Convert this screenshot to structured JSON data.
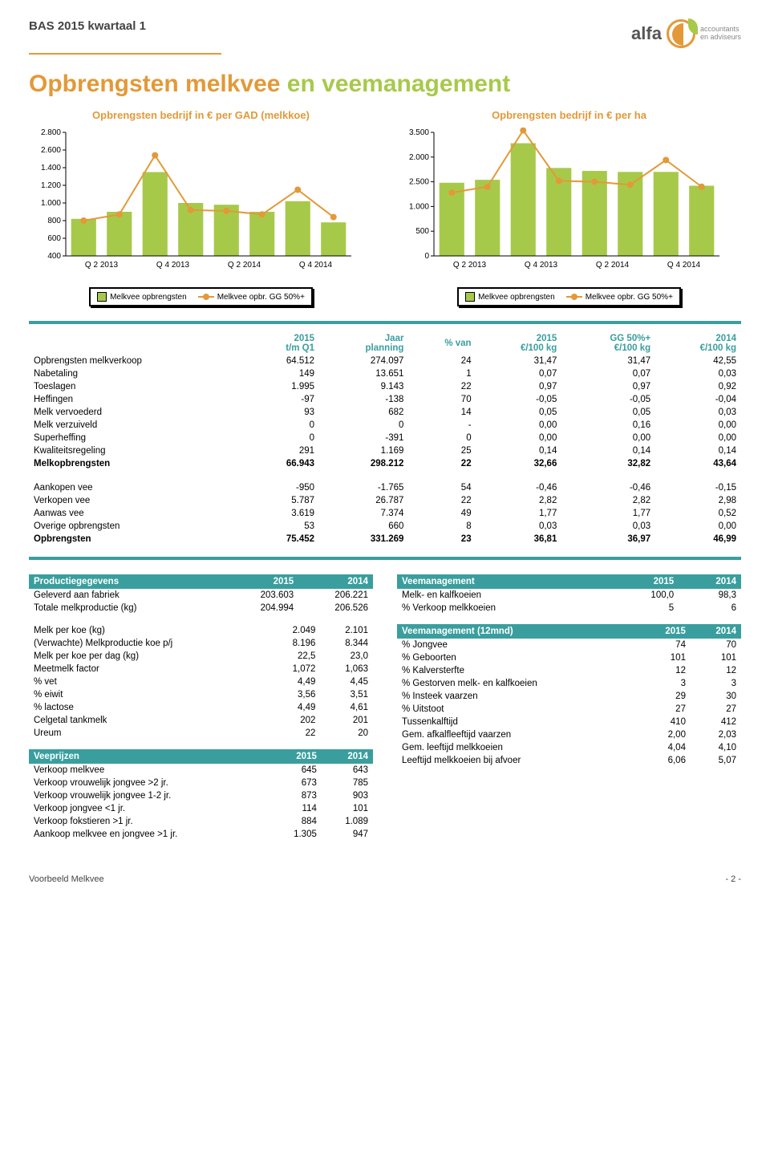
{
  "header": {
    "title": "BAS 2015 kwartaal 1",
    "brand": "alfa",
    "tagline1": "accountants",
    "tagline2": "en adviseurs"
  },
  "page_title": {
    "part1": "Opbrengsten melkvee",
    "part2": " en veemanagement"
  },
  "chart1": {
    "title": "Opbrengsten bedrijf in € per GAD (melkkoe)",
    "type": "bar+line",
    "categories": [
      "Q 2 2013",
      "Q 4 2013",
      "Q 2 2014",
      "Q 4 2014"
    ],
    "bar_values": [
      820,
      900,
      1350,
      1000,
      980,
      900,
      1020,
      780
    ],
    "line_values": [
      800,
      870,
      1540,
      920,
      910,
      870,
      1150,
      840
    ],
    "ylim": [
      400,
      1800
    ],
    "ytick_step": 200,
    "bar_color": "#a7c94a",
    "line_color": "#e39938",
    "axis_color": "#000",
    "bg": "#ffffff",
    "legend_bar": "Melkvee opbrengsten",
    "legend_line": "Melkvee opbr. GG 50%+"
  },
  "chart2": {
    "title": "Opbrengsten bedrijf in € per ha",
    "type": "bar+line",
    "categories": [
      "Q 2 2013",
      "Q 4 2013",
      "Q 2 2014",
      "Q 4 2014"
    ],
    "bar_values": [
      1480,
      1540,
      2280,
      1780,
      1720,
      1700,
      1700,
      1420
    ],
    "line_values": [
      1280,
      1400,
      2540,
      1520,
      1500,
      1440,
      1940,
      1400
    ],
    "ylim": [
      0,
      2500
    ],
    "ytick_step": 500,
    "bar_color": "#a7c94a",
    "line_color": "#e39938",
    "axis_color": "#000",
    "bg": "#ffffff",
    "legend_bar": "Melkvee opbrengsten",
    "legend_line": "Melkvee opbr. GG 50%+"
  },
  "main_table": {
    "headers": [
      "",
      "2015\nt/m Q1",
      "Jaar\nplanning",
      "% van",
      "2015\n€/100 kg",
      "GG 50%+\n€/100 kg",
      "2014\n€/100 kg"
    ],
    "rows": [
      [
        "Opbrengsten melkverkoop",
        "64.512",
        "274.097",
        "24",
        "31,47",
        "31,47",
        "42,55"
      ],
      [
        "Nabetaling",
        "149",
        "13.651",
        "1",
        "0,07",
        "0,07",
        "0,03"
      ],
      [
        "Toeslagen",
        "1.995",
        "9.143",
        "22",
        "0,97",
        "0,97",
        "0,92"
      ],
      [
        "Heffingen",
        "-97",
        "-138",
        "70",
        "-0,05",
        "-0,05",
        "-0,04"
      ],
      [
        "Melk vervoederd",
        "93",
        "682",
        "14",
        "0,05",
        "0,05",
        "0,03"
      ],
      [
        "Melk verzuiveld",
        "0",
        "0",
        "-",
        "0,00",
        "0,16",
        "0,00"
      ],
      [
        "Superheffing",
        "0",
        "-391",
        "0",
        "0,00",
        "0,00",
        "0,00"
      ],
      [
        "Kwaliteitsregeling",
        "291",
        "1.169",
        "25",
        "0,14",
        "0,14",
        "0,14"
      ]
    ],
    "bold1": [
      "Melkopbrengsten",
      "66.943",
      "298.212",
      "22",
      "32,66",
      "32,82",
      "43,64"
    ],
    "rows2": [
      [
        "Aankopen vee",
        "-950",
        "-1.765",
        "54",
        "-0,46",
        "-0,46",
        "-0,15"
      ],
      [
        "Verkopen vee",
        "5.787",
        "26.787",
        "22",
        "2,82",
        "2,82",
        "2,98"
      ],
      [
        "Aanwas vee",
        "3.619",
        "7.374",
        "49",
        "1,77",
        "1,77",
        "0,52"
      ],
      [
        "Overige opbrengsten",
        "53",
        "660",
        "8",
        "0,03",
        "0,03",
        "0,00"
      ]
    ],
    "bold2": [
      "Opbrengsten",
      "75.452",
      "331.269",
      "23",
      "36,81",
      "36,97",
      "46,99"
    ]
  },
  "productie": {
    "title": "Productiegegevens",
    "h2015": "2015",
    "h2014": "2014",
    "rows": [
      [
        "Geleverd aan fabriek",
        "203.603",
        "206.221"
      ],
      [
        "Totale melkproductie (kg)",
        "204.994",
        "206.526"
      ]
    ],
    "rows2": [
      [
        "Melk per koe (kg)",
        "2.049",
        "2.101"
      ],
      [
        "(Verwachte) Melkproductie koe p/j",
        "8.196",
        "8.344"
      ],
      [
        "Melk per koe per dag (kg)",
        "22,5",
        "23,0"
      ],
      [
        "Meetmelk factor",
        "1,072",
        "1,063"
      ],
      [
        "% vet",
        "4,49",
        "4,45"
      ],
      [
        "% eiwit",
        "3,56",
        "3,51"
      ],
      [
        "% lactose",
        "4,49",
        "4,61"
      ],
      [
        "Celgetal tankmelk",
        "202",
        "201"
      ],
      [
        "Ureum",
        "22",
        "20"
      ]
    ]
  },
  "veeprijzen": {
    "title": "Veeprijzen",
    "h2015": "2015",
    "h2014": "2014",
    "rows": [
      [
        "Verkoop melkvee",
        "645",
        "643"
      ],
      [
        "Verkoop vrouwelijk jongvee >2 jr.",
        "673",
        "785"
      ],
      [
        "Verkoop vrouwelijk jongvee 1-2 jr.",
        "873",
        "903"
      ],
      [
        "Verkoop jongvee <1 jr.",
        "114",
        "101"
      ],
      [
        "Verkoop fokstieren >1 jr.",
        "884",
        "1.089"
      ],
      [
        "Aankoop melkvee en jongvee >1 jr.",
        "1.305",
        "947"
      ]
    ]
  },
  "veemanagement": {
    "title": "Veemanagement",
    "h2015": "2015",
    "h2014": "2014",
    "rows": [
      [
        "Melk- en kalfkoeien",
        "100,0",
        "98,3"
      ],
      [
        "% Verkoop melkkoeien",
        "5",
        "6"
      ]
    ]
  },
  "veemanagement12": {
    "title": "Veemanagement (12mnd)",
    "h2015": "2015",
    "h2014": "2014",
    "rows": [
      [
        "% Jongvee",
        "74",
        "70"
      ],
      [
        "% Geboorten",
        "101",
        "101"
      ],
      [
        "% Kalversterfte",
        "12",
        "12"
      ],
      [
        "% Gestorven melk- en kalfkoeien",
        "3",
        "3"
      ],
      [
        "% Insteek vaarzen",
        "29",
        "30"
      ],
      [
        "% Uitstoot",
        "27",
        "27"
      ],
      [
        "Tussenkalftijd",
        "410",
        "412"
      ],
      [
        "Gem. afkalfleeftijd vaarzen",
        "2,00",
        "2,03"
      ],
      [
        "Gem. leeftijd melkkoeien",
        "4,04",
        "4,10"
      ],
      [
        "Leeftijd melkkoeien bij afvoer",
        "6,06",
        "5,07"
      ]
    ]
  },
  "footer": {
    "left": "Voorbeeld Melkvee",
    "right": "- 2 -"
  }
}
